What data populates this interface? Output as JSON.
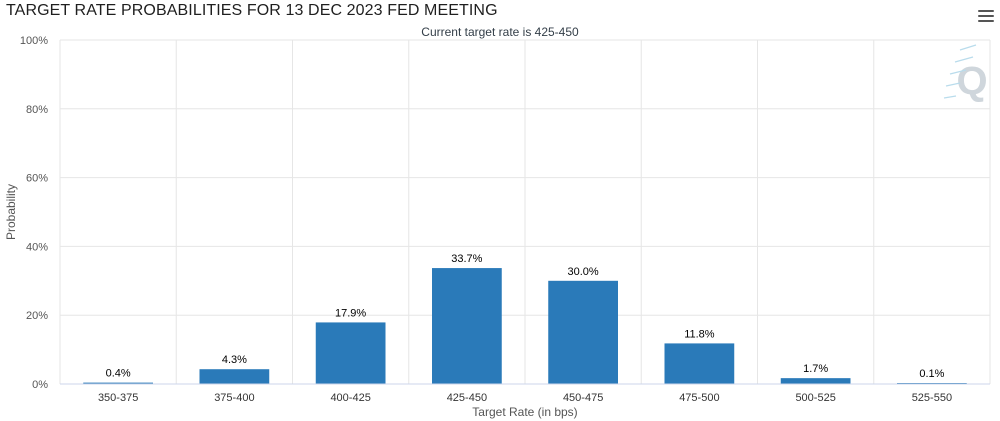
{
  "chart_data": {
    "type": "bar",
    "title": "TARGET RATE PROBABILITIES FOR 13 DEC 2023 FED MEETING",
    "subtitle": "Current target rate is 425-450",
    "xlabel": "Target Rate (in bps)",
    "ylabel": "Probability",
    "categories": [
      "350-375",
      "375-400",
      "400-425",
      "425-450",
      "450-475",
      "475-500",
      "500-525",
      "525-550"
    ],
    "values": [
      0.4,
      4.3,
      17.9,
      33.7,
      30.0,
      11.8,
      1.7,
      0.1
    ],
    "value_labels": [
      "0.4%",
      "4.3%",
      "17.9%",
      "33.7%",
      "30.0%",
      "11.8%",
      "1.7%",
      "0.1%"
    ],
    "ylim": [
      0,
      100
    ],
    "yticks": [
      0,
      20,
      40,
      60,
      80,
      100
    ],
    "ytick_labels": [
      "0%",
      "20%",
      "40%",
      "60%",
      "80%",
      "100%"
    ],
    "grid": true,
    "bar_color": "#2a7ab9",
    "watermark": "Q"
  }
}
